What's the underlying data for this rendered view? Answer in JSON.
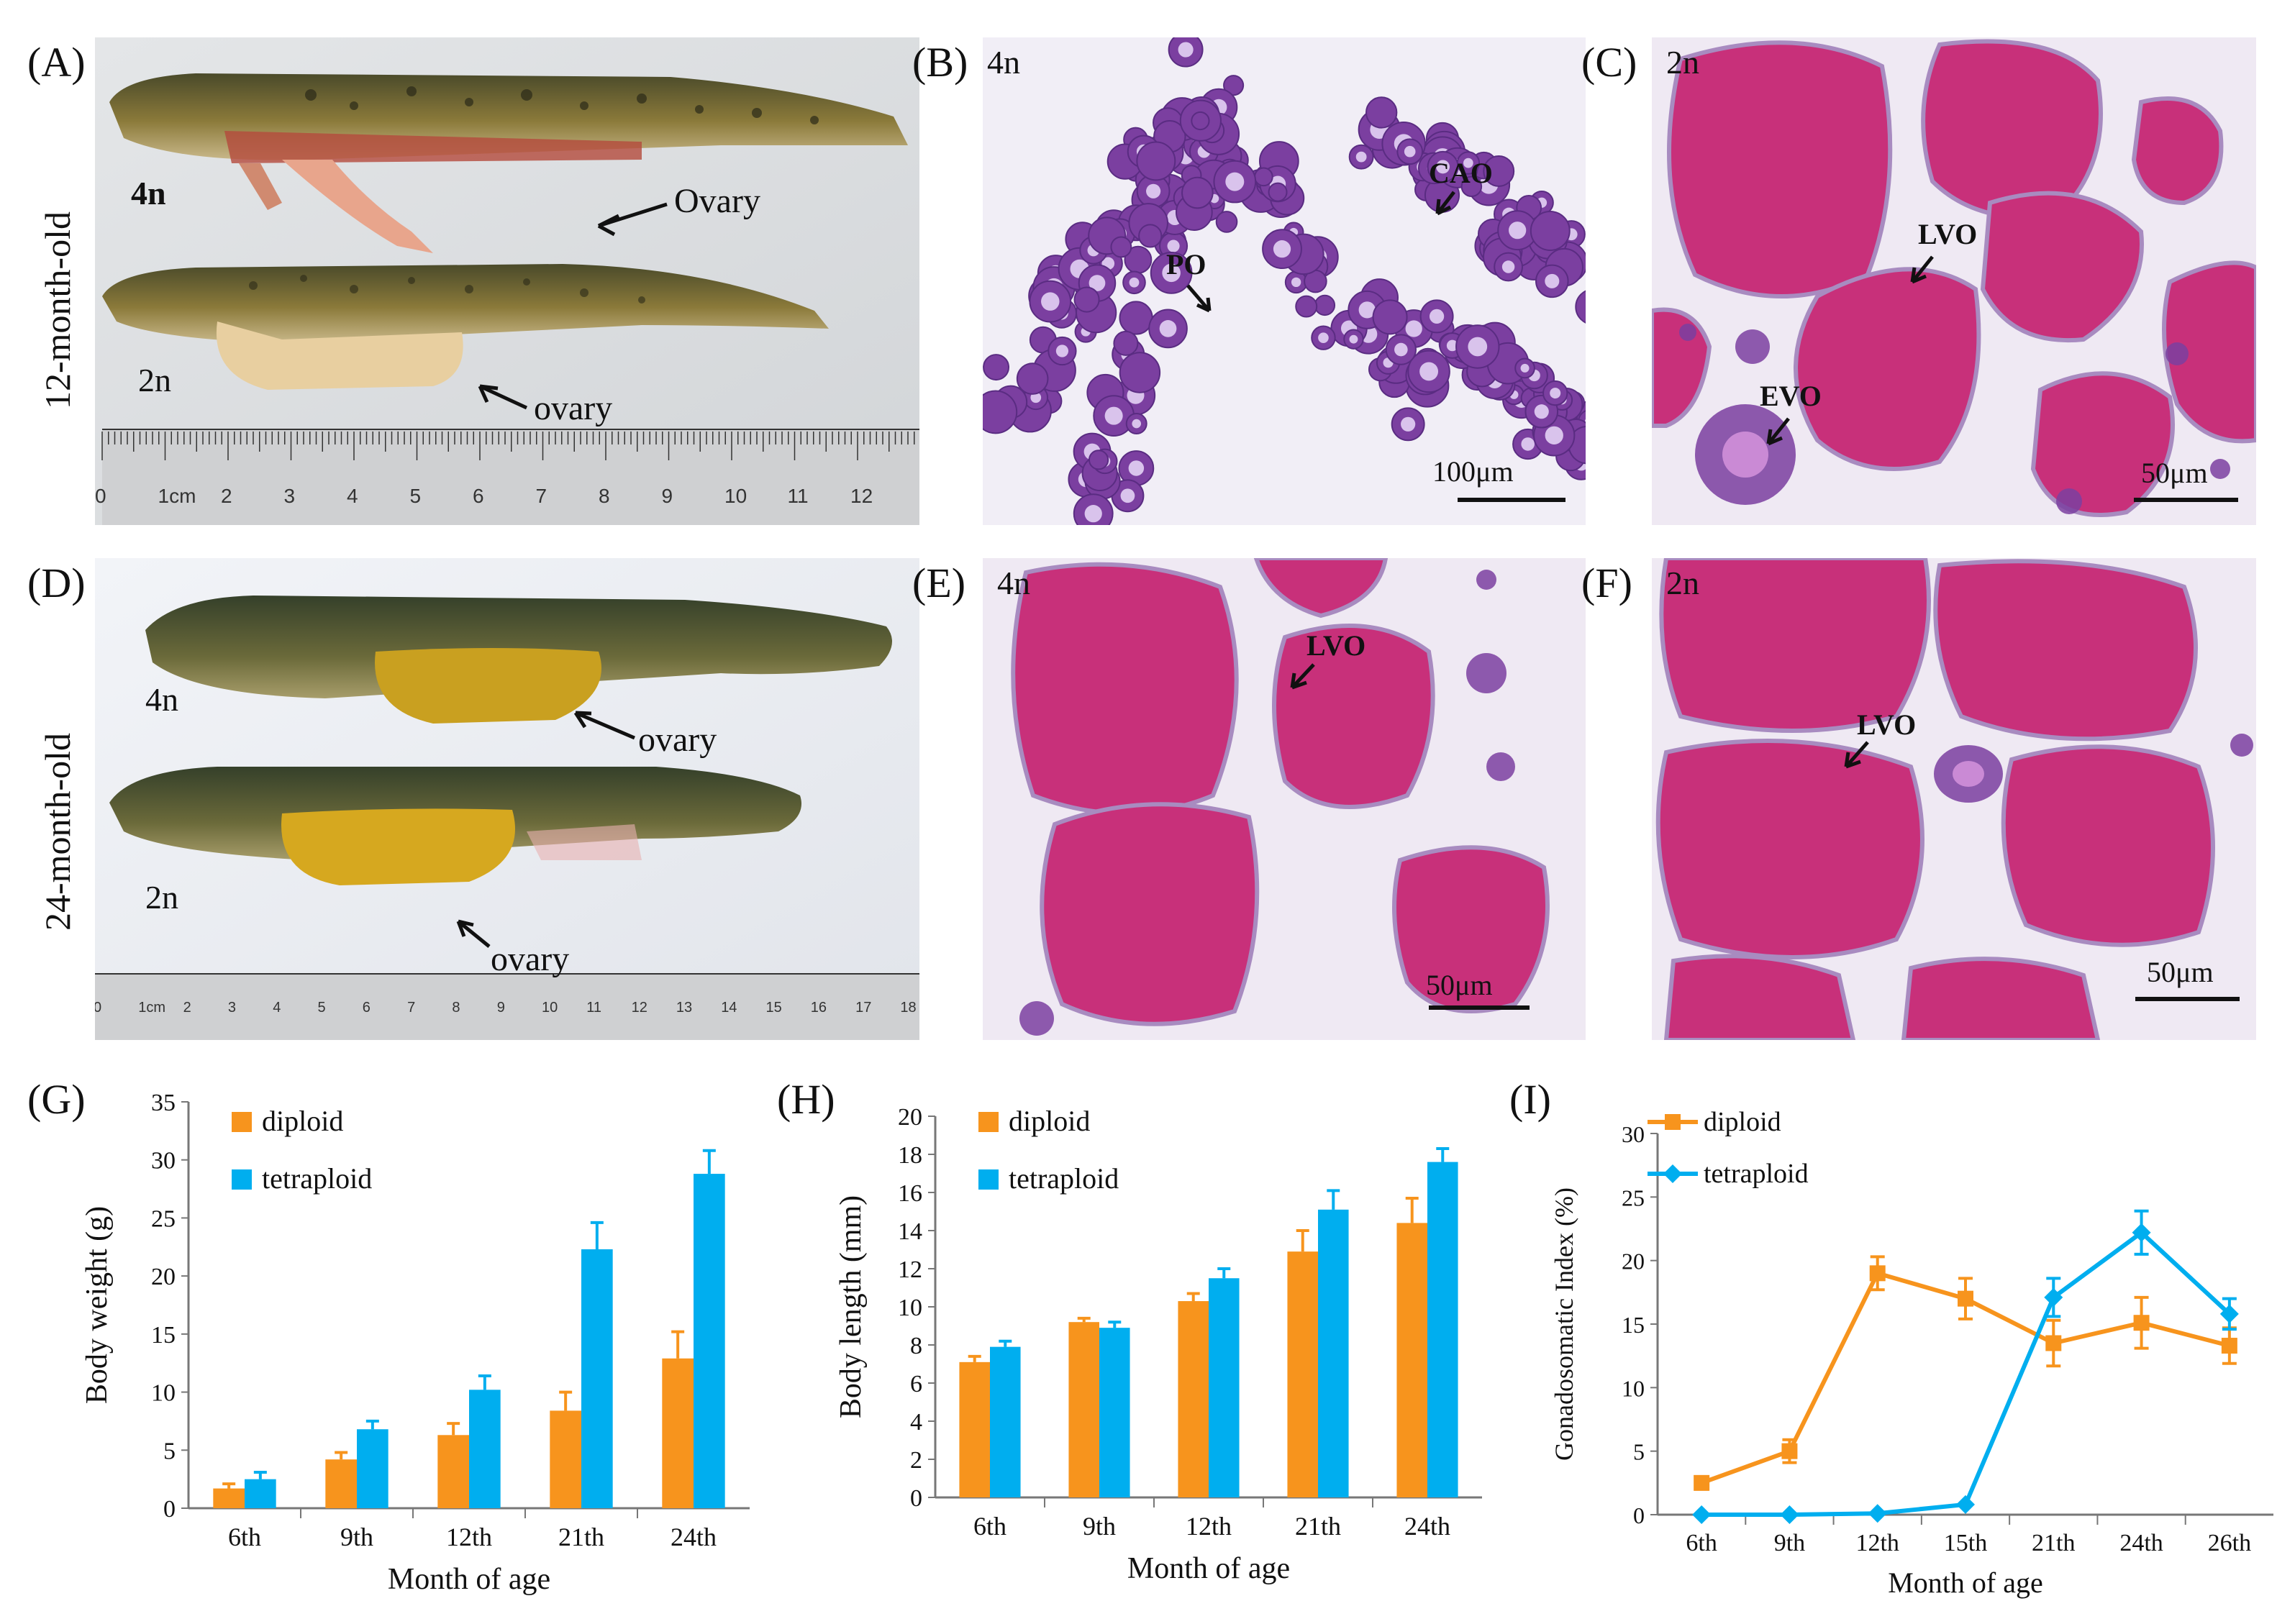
{
  "figure": {
    "panel_letters": [
      "(A)",
      "(B)",
      "(C)",
      "(D)",
      "(E)",
      "(F)",
      "(G)",
      "(H)",
      "(I)"
    ],
    "side_labels": [
      "12-month-old",
      "24-month-old"
    ],
    "panelA": {
      "tag_4n": "4n",
      "tag_2n": "2n",
      "ovary_upper": "Ovary",
      "ovary_lower": "ovary",
      "ruler_ticks": [
        "0",
        "1cm",
        "2",
        "3",
        "4",
        "5",
        "6",
        "7",
        "8",
        "9",
        "10",
        "11",
        "12"
      ]
    },
    "panelB": {
      "ploidy": "4n",
      "label_cao": "CAO",
      "label_po": "PO",
      "scale": "100μm"
    },
    "panelC": {
      "ploidy": "2n",
      "label_lvo": "LVO",
      "label_evo": "EVO",
      "scale": "50μm"
    },
    "panelD": {
      "tag_4n": "4n",
      "tag_2n": "2n",
      "ovary_upper": "ovary",
      "ovary_lower": "ovary",
      "ruler_ticks": [
        "0",
        "1cm",
        "2",
        "3",
        "4",
        "5",
        "6",
        "7",
        "8",
        "9",
        "10",
        "11",
        "12",
        "13",
        "14",
        "15",
        "16",
        "17",
        "18"
      ]
    },
    "panelE": {
      "ploidy": "4n",
      "label_lvo": "LVO",
      "scale": "50μm"
    },
    "panelF": {
      "ploidy": "2n",
      "label_lvo": "LVO",
      "scale": "50μm"
    },
    "colors": {
      "diploid": "#F7941D",
      "tetraploid": "#00AEEF",
      "histo_purple": "#7B3FA0",
      "histo_pink": "#C8307A",
      "background_slide": "#EEEAF4"
    }
  },
  "chart_data": [
    {
      "id": "G",
      "type": "bar",
      "title": "",
      "xlabel": "Month of age",
      "ylabel": "Body weight (g)",
      "categories": [
        "6th",
        "9th",
        "12th",
        "21th",
        "24th"
      ],
      "ylim": [
        0,
        35
      ],
      "yticks": [
        0,
        5,
        10,
        15,
        20,
        25,
        30,
        35
      ],
      "series": [
        {
          "name": "diploid",
          "values": [
            1.7,
            4.2,
            6.3,
            8.4,
            12.9
          ],
          "errors": [
            0.4,
            0.6,
            1.0,
            1.6,
            2.3
          ]
        },
        {
          "name": "tetraploid",
          "values": [
            2.5,
            6.8,
            10.2,
            22.3,
            28.8
          ],
          "errors": [
            0.6,
            0.7,
            1.2,
            2.3,
            2.0
          ]
        }
      ],
      "legend": [
        "diploid",
        "tetraploid"
      ]
    },
    {
      "id": "H",
      "type": "bar",
      "title": "",
      "xlabel": "Month of age",
      "ylabel": "Body length (mm)",
      "categories": [
        "6th",
        "9th",
        "12th",
        "21th",
        "24th"
      ],
      "ylim": [
        0,
        20
      ],
      "yticks": [
        0,
        2,
        4,
        6,
        8,
        10,
        12,
        14,
        16,
        18,
        20
      ],
      "series": [
        {
          "name": "diploid",
          "values": [
            7.1,
            9.2,
            10.3,
            12.9,
            14.4
          ],
          "errors": [
            0.3,
            0.2,
            0.4,
            1.1,
            1.3
          ]
        },
        {
          "name": "tetraploid",
          "values": [
            7.9,
            8.9,
            11.5,
            15.1,
            17.6
          ],
          "errors": [
            0.3,
            0.3,
            0.5,
            1.0,
            0.7
          ]
        }
      ],
      "legend": [
        "diploid",
        "tetraploid"
      ]
    },
    {
      "id": "I",
      "type": "line",
      "title": "",
      "xlabel": "Month of age",
      "ylabel": "Gonadosomatic Index (%)",
      "categories": [
        "6th",
        "9th",
        "12th",
        "15th",
        "21th",
        "24th",
        "26th"
      ],
      "ylim": [
        0,
        30
      ],
      "yticks": [
        0,
        5,
        10,
        15,
        20,
        25,
        30
      ],
      "series": [
        {
          "name": "diploid",
          "values": [
            2.5,
            5.0,
            19.0,
            17.0,
            13.5,
            15.1,
            13.3
          ],
          "errors": [
            0.5,
            0.9,
            1.3,
            1.6,
            1.8,
            2.0,
            1.4
          ]
        },
        {
          "name": "tetraploid",
          "values": [
            0.0,
            0.0,
            0.1,
            0.8,
            17.1,
            22.2,
            15.8
          ],
          "errors": [
            0,
            0,
            0,
            0,
            1.5,
            1.7,
            1.2
          ]
        }
      ],
      "legend": [
        "diploid",
        "tetraploid"
      ]
    }
  ]
}
